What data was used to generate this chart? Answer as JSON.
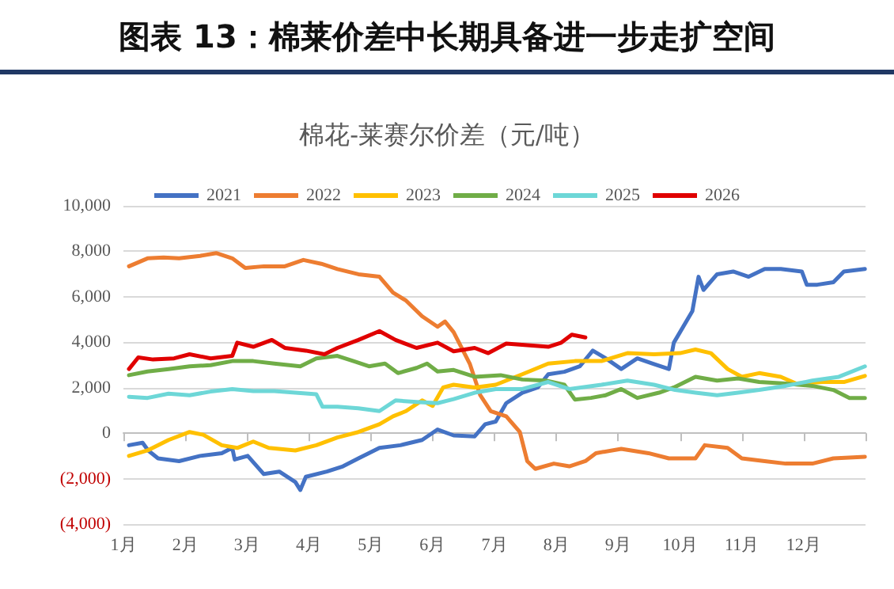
{
  "chart_data": {
    "type": "line",
    "title": "图表 13：棉莱价差中长期具备进一步走扩空间",
    "subtitle": "棉花-莱赛尔价差（元/吨）",
    "xlim": [
      1,
      13
    ],
    "xticks": [
      {
        "value": 1,
        "label": "1月"
      },
      {
        "value": 2,
        "label": "2月"
      },
      {
        "value": 3,
        "label": "3月"
      },
      {
        "value": 4,
        "label": "4月"
      },
      {
        "value": 5,
        "label": "5月"
      },
      {
        "value": 6,
        "label": "6月"
      },
      {
        "value": 7,
        "label": "7月"
      },
      {
        "value": 8,
        "label": "8月"
      },
      {
        "value": 9,
        "label": "9月"
      },
      {
        "value": 10,
        "label": "10月"
      },
      {
        "value": 11,
        "label": "11月"
      },
      {
        "value": 12,
        "label": "12月"
      },
      {
        "value": 13,
        "label": null
      }
    ],
    "ylim": [
      -4000,
      10000
    ],
    "yticks": [
      {
        "value": -4000,
        "label": "(4,000)"
      },
      {
        "value": -2000,
        "label": "(2,000)"
      },
      0,
      {
        "value": 2000,
        "label": "2,000"
      },
      {
        "value": 4000,
        "label": "4,000"
      },
      {
        "value": 6000,
        "label": "6,000"
      },
      {
        "value": 8000,
        "label": "8,000"
      },
      {
        "value": 10000,
        "label": "10,000"
      }
    ],
    "grid": "y",
    "legend": "top",
    "marker": "none",
    "line_style": "solid",
    "series": [
      {
        "name": "2021",
        "color": "#4472c4",
        "x": [
          1.09,
          1.31,
          1.4,
          1.56,
          1.9,
          2.24,
          2.59,
          2.76,
          2.8,
          3.01,
          3.27,
          3.52,
          3.78,
          3.86,
          3.95,
          4.29,
          4.55,
          4.8,
          5.14,
          5.48,
          5.83,
          6.08,
          6.34,
          6.68,
          6.85,
          7.02,
          7.19,
          7.45,
          7.7,
          7.87,
          8.13,
          8.38,
          8.59,
          8.8,
          9.05,
          9.31,
          9.56,
          9.82,
          9.9,
          10.2,
          10.3,
          10.38,
          10.6,
          10.86,
          11.11,
          11.37,
          11.63,
          11.97,
          12.05,
          12.22,
          12.48,
          12.65,
          12.99
        ],
        "values": [
          -530,
          -420,
          -760,
          -1110,
          -1230,
          -1000,
          -880,
          -650,
          -1160,
          -1000,
          -1800,
          -1690,
          -2150,
          -2500,
          -1920,
          -1690,
          -1460,
          -1110,
          -650,
          -530,
          -300,
          160,
          -100,
          -140,
          390,
          510,
          1320,
          1780,
          2010,
          2590,
          2700,
          2940,
          3630,
          3290,
          2820,
          3290,
          3060,
          2820,
          3980,
          5370,
          6880,
          6300,
          6990,
          7110,
          6880,
          7220,
          7220,
          7110,
          6530,
          6530,
          6640,
          7110,
          7220
        ]
      },
      {
        "name": "2022",
        "color": "#ed7d31",
        "x": [
          1.09,
          1.39,
          1.65,
          1.9,
          2.24,
          2.5,
          2.76,
          2.97,
          3.27,
          3.61,
          3.91,
          4.2,
          4.46,
          4.8,
          5.14,
          5.36,
          5.57,
          5.83,
          6.08,
          6.2,
          6.34,
          6.6,
          6.77,
          6.94,
          7.19,
          7.41,
          7.53,
          7.66,
          7.96,
          8.21,
          8.47,
          8.64,
          9.05,
          9.49,
          9.82,
          10.25,
          10.4,
          10.77,
          11.0,
          11.37,
          11.71,
          12.14,
          12.48,
          12.99
        ],
        "values": [
          7340,
          7690,
          7730,
          7690,
          7800,
          7920,
          7690,
          7270,
          7340,
          7340,
          7620,
          7450,
          7220,
          6990,
          6880,
          6180,
          5830,
          5140,
          4680,
          4910,
          4440,
          3060,
          1670,
          970,
          740,
          50,
          -1230,
          -1570,
          -1340,
          -1460,
          -1230,
          -880,
          -690,
          -880,
          -1110,
          -1110,
          -530,
          -650,
          -1110,
          -1230,
          -1340,
          -1340,
          -1110,
          -1040
        ]
      },
      {
        "name": "2023",
        "color": "#ffc000",
        "x": [
          1.09,
          1.39,
          1.73,
          2.07,
          2.29,
          2.59,
          2.84,
          3.1,
          3.35,
          3.78,
          4.12,
          4.46,
          4.8,
          5.14,
          5.36,
          5.57,
          5.83,
          6.0,
          6.17,
          6.34,
          6.68,
          7.02,
          7.45,
          7.87,
          8.3,
          8.73,
          9.15,
          9.58,
          10.0,
          10.25,
          10.5,
          10.77,
          11.0,
          11.28,
          11.63,
          11.88,
          12.31,
          12.65,
          12.99
        ],
        "values": [
          -1000,
          -760,
          -300,
          50,
          -70,
          -530,
          -650,
          -370,
          -650,
          -760,
          -530,
          -190,
          50,
          390,
          740,
          970,
          1440,
          1200,
          2010,
          2130,
          2010,
          2130,
          2590,
          3060,
          3170,
          3170,
          3520,
          3470,
          3520,
          3680,
          3520,
          2820,
          2480,
          2640,
          2480,
          2180,
          2250,
          2250,
          2520
        ]
      },
      {
        "name": "2024",
        "color": "#70ad47",
        "x": [
          1.09,
          1.39,
          1.73,
          2.07,
          2.41,
          2.76,
          3.1,
          3.44,
          3.86,
          4.12,
          4.46,
          4.72,
          4.97,
          5.23,
          5.44,
          5.74,
          5.91,
          6.08,
          6.34,
          6.68,
          7.1,
          7.45,
          7.83,
          8.13,
          8.3,
          8.56,
          8.8,
          9.05,
          9.31,
          9.66,
          9.9,
          10.25,
          10.6,
          10.94,
          11.28,
          11.71,
          12.14,
          12.48,
          12.74,
          12.99
        ],
        "values": [
          2550,
          2710,
          2820,
          2940,
          2990,
          3170,
          3170,
          3060,
          2940,
          3290,
          3400,
          3170,
          2940,
          3060,
          2640,
          2870,
          3060,
          2710,
          2780,
          2480,
          2550,
          2360,
          2310,
          2130,
          1480,
          1550,
          1670,
          1940,
          1550,
          1780,
          2010,
          2480,
          2310,
          2410,
          2250,
          2180,
          2080,
          1900,
          1550,
          1550
        ]
      },
      {
        "name": "2025",
        "color": "#6dd7d7",
        "x": [
          1.09,
          1.39,
          1.73,
          2.07,
          2.41,
          2.76,
          3.1,
          3.44,
          3.78,
          4.12,
          4.22,
          4.46,
          4.8,
          5.14,
          5.4,
          5.74,
          6.08,
          6.34,
          6.68,
          7.02,
          7.45,
          7.87,
          8.21,
          8.73,
          9.15,
          9.58,
          9.92,
          10.25,
          10.6,
          10.94,
          11.28,
          11.71,
          12.14,
          12.57,
          12.99
        ],
        "values": [
          1600,
          1550,
          1740,
          1670,
          1830,
          1940,
          1850,
          1850,
          1780,
          1710,
          1160,
          1160,
          1090,
          970,
          1440,
          1370,
          1320,
          1500,
          1780,
          1940,
          1940,
          2250,
          1940,
          2130,
          2310,
          2130,
          1900,
          1780,
          1670,
          1780,
          1900,
          2080,
          2310,
          2480,
          2940
        ]
      },
      {
        "name": "2026",
        "color": "#e00000",
        "x": [
          1.09,
          1.24,
          1.48,
          1.82,
          2.07,
          2.41,
          2.76,
          2.84,
          3.1,
          3.4,
          3.61,
          3.95,
          4.25,
          4.46,
          4.8,
          5.14,
          5.4,
          5.74,
          6.08,
          6.34,
          6.68,
          6.9,
          7.19,
          7.53,
          7.87,
          8.08,
          8.25,
          8.47
        ],
        "values": [
          2820,
          3330,
          3240,
          3290,
          3470,
          3290,
          3400,
          3980,
          3800,
          4100,
          3750,
          3630,
          3470,
          3750,
          4100,
          4490,
          4100,
          3750,
          3980,
          3600,
          3750,
          3520,
          3940,
          3870,
          3800,
          3980,
          4330,
          4210
        ]
      }
    ]
  }
}
